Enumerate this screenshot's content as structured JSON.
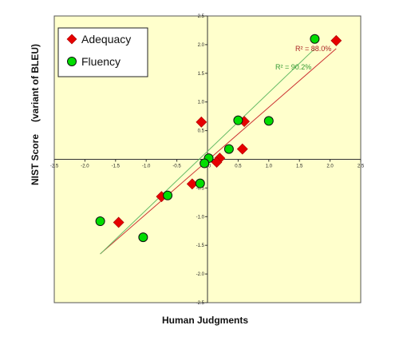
{
  "chart_data": {
    "type": "scatter",
    "title": "",
    "xlabel": "Human Judgments",
    "ylabel_line1": "NIST Score",
    "ylabel_line2": "(variant of BLEU)",
    "xlim": [
      -2.5,
      2.5
    ],
    "ylim": [
      -2.5,
      2.5
    ],
    "xticks": [
      "-2.5",
      "-2.0",
      "-1.5",
      "-1.0",
      "-0.5",
      "0.0",
      "0.5",
      "1.0",
      "1.5",
      "2.0",
      "2.5"
    ],
    "yticks": [
      "2.5",
      "2.0",
      "1.5",
      "1.0",
      "0.5",
      "0.0",
      "-0.5",
      "-1.0",
      "-1.5",
      "-2.0",
      "-2.5"
    ],
    "grid": false,
    "legend_position": "top-left",
    "series": [
      {
        "name": "Adequacy",
        "marker": "diamond",
        "color": "#e60000",
        "trend_color": "#cc3333",
        "r2_label": "R² = 88.0%",
        "points": [
          {
            "x": 2.1,
            "y": 2.07
          },
          {
            "x": 0.6,
            "y": 0.66
          },
          {
            "x": -0.1,
            "y": 0.65
          },
          {
            "x": 0.57,
            "y": 0.18
          },
          {
            "x": 0.2,
            "y": 0.02
          },
          {
            "x": 0.15,
            "y": -0.05
          },
          {
            "x": -0.25,
            "y": -0.43
          },
          {
            "x": -0.75,
            "y": -0.65
          },
          {
            "x": -1.45,
            "y": -1.1
          }
        ]
      },
      {
        "name": "Fluency",
        "marker": "circle",
        "color": "#00dd00",
        "trend_color": "#66bb66",
        "r2_label": "R² = 90.2%",
        "points": [
          {
            "x": 1.75,
            "y": 2.1
          },
          {
            "x": 0.5,
            "y": 0.68
          },
          {
            "x": 1.0,
            "y": 0.67
          },
          {
            "x": 0.35,
            "y": 0.18
          },
          {
            "x": 0.02,
            "y": 0.02
          },
          {
            "x": -0.05,
            "y": -0.07
          },
          {
            "x": -0.12,
            "y": -0.42
          },
          {
            "x": -0.65,
            "y": -0.63
          },
          {
            "x": -1.05,
            "y": -1.36
          },
          {
            "x": -1.75,
            "y": -1.08
          }
        ]
      }
    ],
    "trendlines": [
      {
        "series": "Adequacy",
        "x1": -1.75,
        "y1": -1.65,
        "x2": 2.1,
        "y2": 1.93
      },
      {
        "series": "Fluency",
        "x1": -1.75,
        "y1": -1.65,
        "x2": 1.75,
        "y2": 1.93
      }
    ]
  }
}
